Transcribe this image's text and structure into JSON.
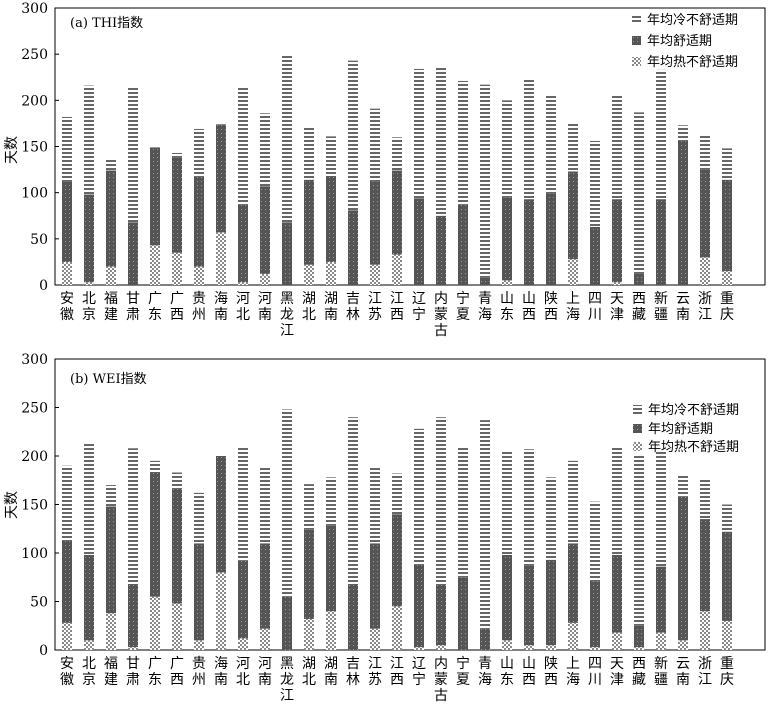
{
  "legend": {
    "cold": "年均冷不舒适期",
    "comfort": "年均舒适期",
    "hot": "年均热不舒适期"
  },
  "colors": {
    "dark": "#555555",
    "stripe": "#666666",
    "dots": "#8a8a8a",
    "axis": "#000000"
  },
  "chart_data": [
    {
      "type": "bar",
      "stacked": true,
      "title": "(a) THI指数",
      "ylabel": "天数",
      "ylim": [
        0,
        300
      ],
      "yticks": [
        0,
        50,
        100,
        150,
        200,
        250,
        300
      ],
      "legend_position": "top-right",
      "categories": [
        "安徽",
        "北京",
        "福建",
        "甘肃",
        "广东",
        "广西",
        "贵州",
        "海南",
        "河北",
        "河南",
        "黑龙江",
        "湖北",
        "湖南",
        "吉林",
        "江苏",
        "江西",
        "辽宁",
        "内蒙古",
        "宁夏",
        "青海",
        "山东",
        "山西",
        "陕西",
        "上海",
        "四川",
        "天津",
        "西藏",
        "新疆",
        "云南",
        "浙江",
        "重庆"
      ],
      "series": [
        {
          "name": "年均热不舒适期",
          "values": [
            25,
            3,
            20,
            0,
            43,
            35,
            20,
            57,
            3,
            12,
            0,
            22,
            25,
            0,
            22,
            33,
            0,
            0,
            0,
            0,
            5,
            0,
            0,
            28,
            0,
            3,
            0,
            0,
            0,
            30,
            15
          ]
        },
        {
          "name": "年均舒适期",
          "values": [
            87,
            95,
            104,
            68,
            106,
            103,
            97,
            117,
            84,
            95,
            68,
            92,
            93,
            81,
            90,
            91,
            94,
            75,
            87,
            8,
            90,
            93,
            99,
            95,
            63,
            90,
            12,
            93,
            156,
            95,
            99
          ]
        },
        {
          "name": "年均冷不舒适期",
          "values": [
            70,
            118,
            13,
            147,
            0,
            5,
            52,
            0,
            127,
            79,
            181,
            57,
            43,
            162,
            79,
            36,
            140,
            162,
            134,
            209,
            105,
            129,
            106,
            52,
            93,
            112,
            175,
            140,
            17,
            37,
            34
          ]
        }
      ]
    },
    {
      "type": "bar",
      "stacked": true,
      "title": "(b) WEI指数",
      "ylabel": "天数",
      "ylim": [
        0,
        300
      ],
      "yticks": [
        0,
        50,
        100,
        150,
        200,
        250,
        300
      ],
      "legend_position": "top-right",
      "categories": [
        "安徽",
        "北京",
        "福建",
        "甘肃",
        "广东",
        "广西",
        "贵州",
        "海南",
        "河北",
        "河南",
        "黑龙江",
        "湖北",
        "湖南",
        "吉林",
        "江苏",
        "江西",
        "辽宁",
        "内蒙古",
        "宁夏",
        "青海",
        "山东",
        "山西",
        "陕西",
        "上海",
        "四川",
        "天津",
        "西藏",
        "新疆",
        "云南",
        "浙江",
        "重庆"
      ],
      "series": [
        {
          "name": "年均热不舒适期",
          "values": [
            28,
            10,
            38,
            3,
            55,
            48,
            10,
            80,
            12,
            22,
            0,
            32,
            40,
            0,
            22,
            45,
            3,
            5,
            0,
            0,
            10,
            5,
            5,
            28,
            3,
            18,
            3,
            18,
            10,
            40,
            30
          ]
        },
        {
          "name": "年均舒适期",
          "values": [
            85,
            88,
            110,
            65,
            128,
            118,
            100,
            120,
            80,
            88,
            55,
            92,
            88,
            68,
            88,
            95,
            85,
            62,
            75,
            22,
            88,
            82,
            88,
            82,
            68,
            80,
            22,
            68,
            148,
            95,
            92
          ]
        },
        {
          "name": "年均冷不舒适期",
          "values": [
            77,
            115,
            22,
            140,
            12,
            17,
            52,
            0,
            118,
            78,
            193,
            47,
            50,
            172,
            78,
            42,
            140,
            173,
            135,
            215,
            108,
            120,
            85,
            85,
            82,
            112,
            175,
            120,
            22,
            42,
            28
          ]
        }
      ]
    }
  ]
}
